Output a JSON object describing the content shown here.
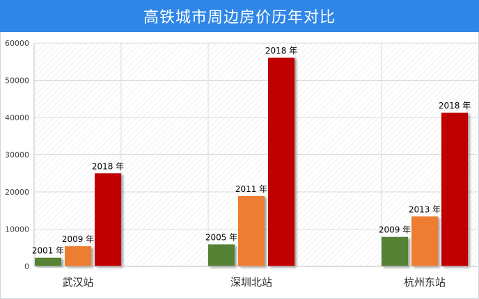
{
  "chart_data": {
    "type": "bar",
    "title": "高铁城市周边房价历年对比",
    "ylim": [
      0,
      60000
    ],
    "yticks": [
      "0",
      "10000",
      "20000",
      "30000",
      "40000",
      "50000",
      "60000"
    ],
    "grid": true,
    "groups": [
      {
        "category": "武汉站",
        "bars": [
          {
            "label": "2001 年",
            "value": 2300,
            "color": "#548235"
          },
          {
            "label": "2009 年",
            "value": 5400,
            "color": "#ed7d31"
          },
          {
            "label": "2018 年",
            "value": 25000,
            "color": "#c00000"
          }
        ]
      },
      {
        "category": "深圳北站",
        "bars": [
          {
            "label": "2005 年",
            "value": 5900,
            "color": "#548235"
          },
          {
            "label": "2011 年",
            "value": 18900,
            "color": "#ed7d31"
          },
          {
            "label": "2018 年",
            "value": 56100,
            "color": "#c00000"
          }
        ]
      },
      {
        "category": "杭州东站",
        "bars": [
          {
            "label": "2009 年",
            "value": 7900,
            "color": "#548235"
          },
          {
            "label": "2013 年",
            "value": 13400,
            "color": "#ed7d31"
          },
          {
            "label": "2018 年",
            "value": 41300,
            "color": "#c00000"
          }
        ]
      }
    ]
  },
  "colors": {
    "title_bar": "#2f86e6",
    "grid": "#d9d9d9"
  }
}
